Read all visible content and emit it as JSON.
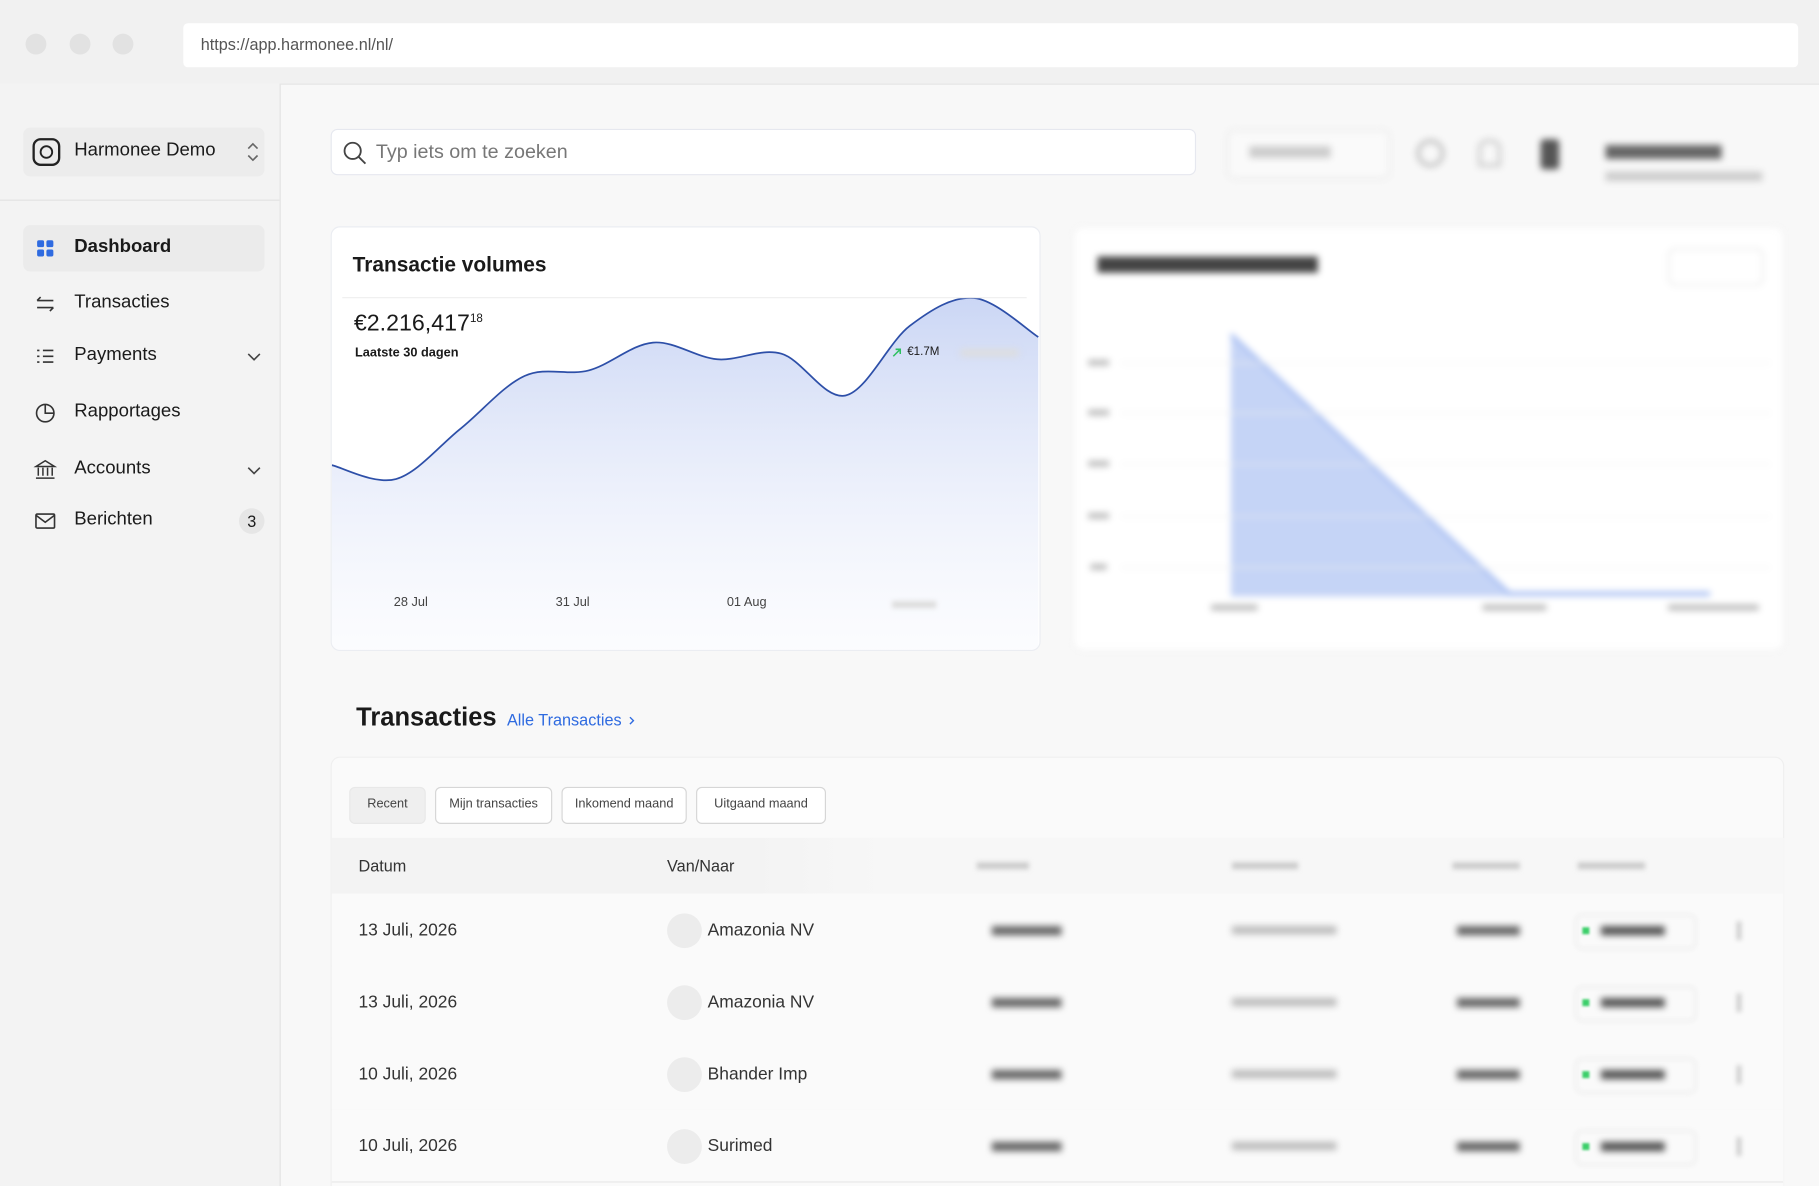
{
  "browser": {
    "url": "https://app.harmonee.nl/nl/"
  },
  "sidebar": {
    "workspace": "Harmonee Demo",
    "nav": [
      {
        "label": "Dashboard"
      },
      {
        "label": "Transacties"
      },
      {
        "label": "Payments"
      },
      {
        "label": "Rapportages"
      },
      {
        "label": "Accounts"
      },
      {
        "label": "Berichten",
        "badge": 3
      }
    ]
  },
  "search": {
    "placeholder": "Typ iets om te zoeken"
  },
  "card": {
    "title": "Transactie volumes",
    "amount": "€2.216,417",
    "amount_decimals": "18",
    "period": "Laatste 30 dagen",
    "legend": "€1.7M"
  },
  "chart_data": {
    "type": "line",
    "x": [
      0,
      1,
      2,
      3,
      4,
      5,
      6,
      7,
      8,
      9,
      10,
      11
    ],
    "values": [
      33,
      28,
      46,
      65,
      67,
      77,
      71,
      73,
      58,
      83,
      93,
      79
    ],
    "xlim": [
      0,
      11
    ],
    "ylim": [
      0,
      100
    ],
    "xticks": [
      {
        "value": 1.23,
        "label": "28 Jul"
      },
      {
        "value": 3.75,
        "label": "31 Jul"
      },
      {
        "value": 6.46,
        "label": "01 Aug"
      }
    ],
    "color": "#2d4fa8"
  },
  "transactions": {
    "title": "Transacties",
    "link": "Alle Transacties",
    "filters": [
      "Recent",
      "Mijn transacties",
      "Inkomend maand",
      "Uitgaand maand"
    ],
    "columns": [
      "Datum",
      "Van/Naar"
    ],
    "rows": [
      [
        "13 Juli, 2026",
        "Amazonia NV"
      ],
      [
        "13 Juli, 2026",
        "Amazonia NV"
      ],
      [
        "10 Juli, 2026",
        "Bhander Imp"
      ],
      [
        "10 Juli, 2026",
        "Surimed"
      ]
    ]
  }
}
